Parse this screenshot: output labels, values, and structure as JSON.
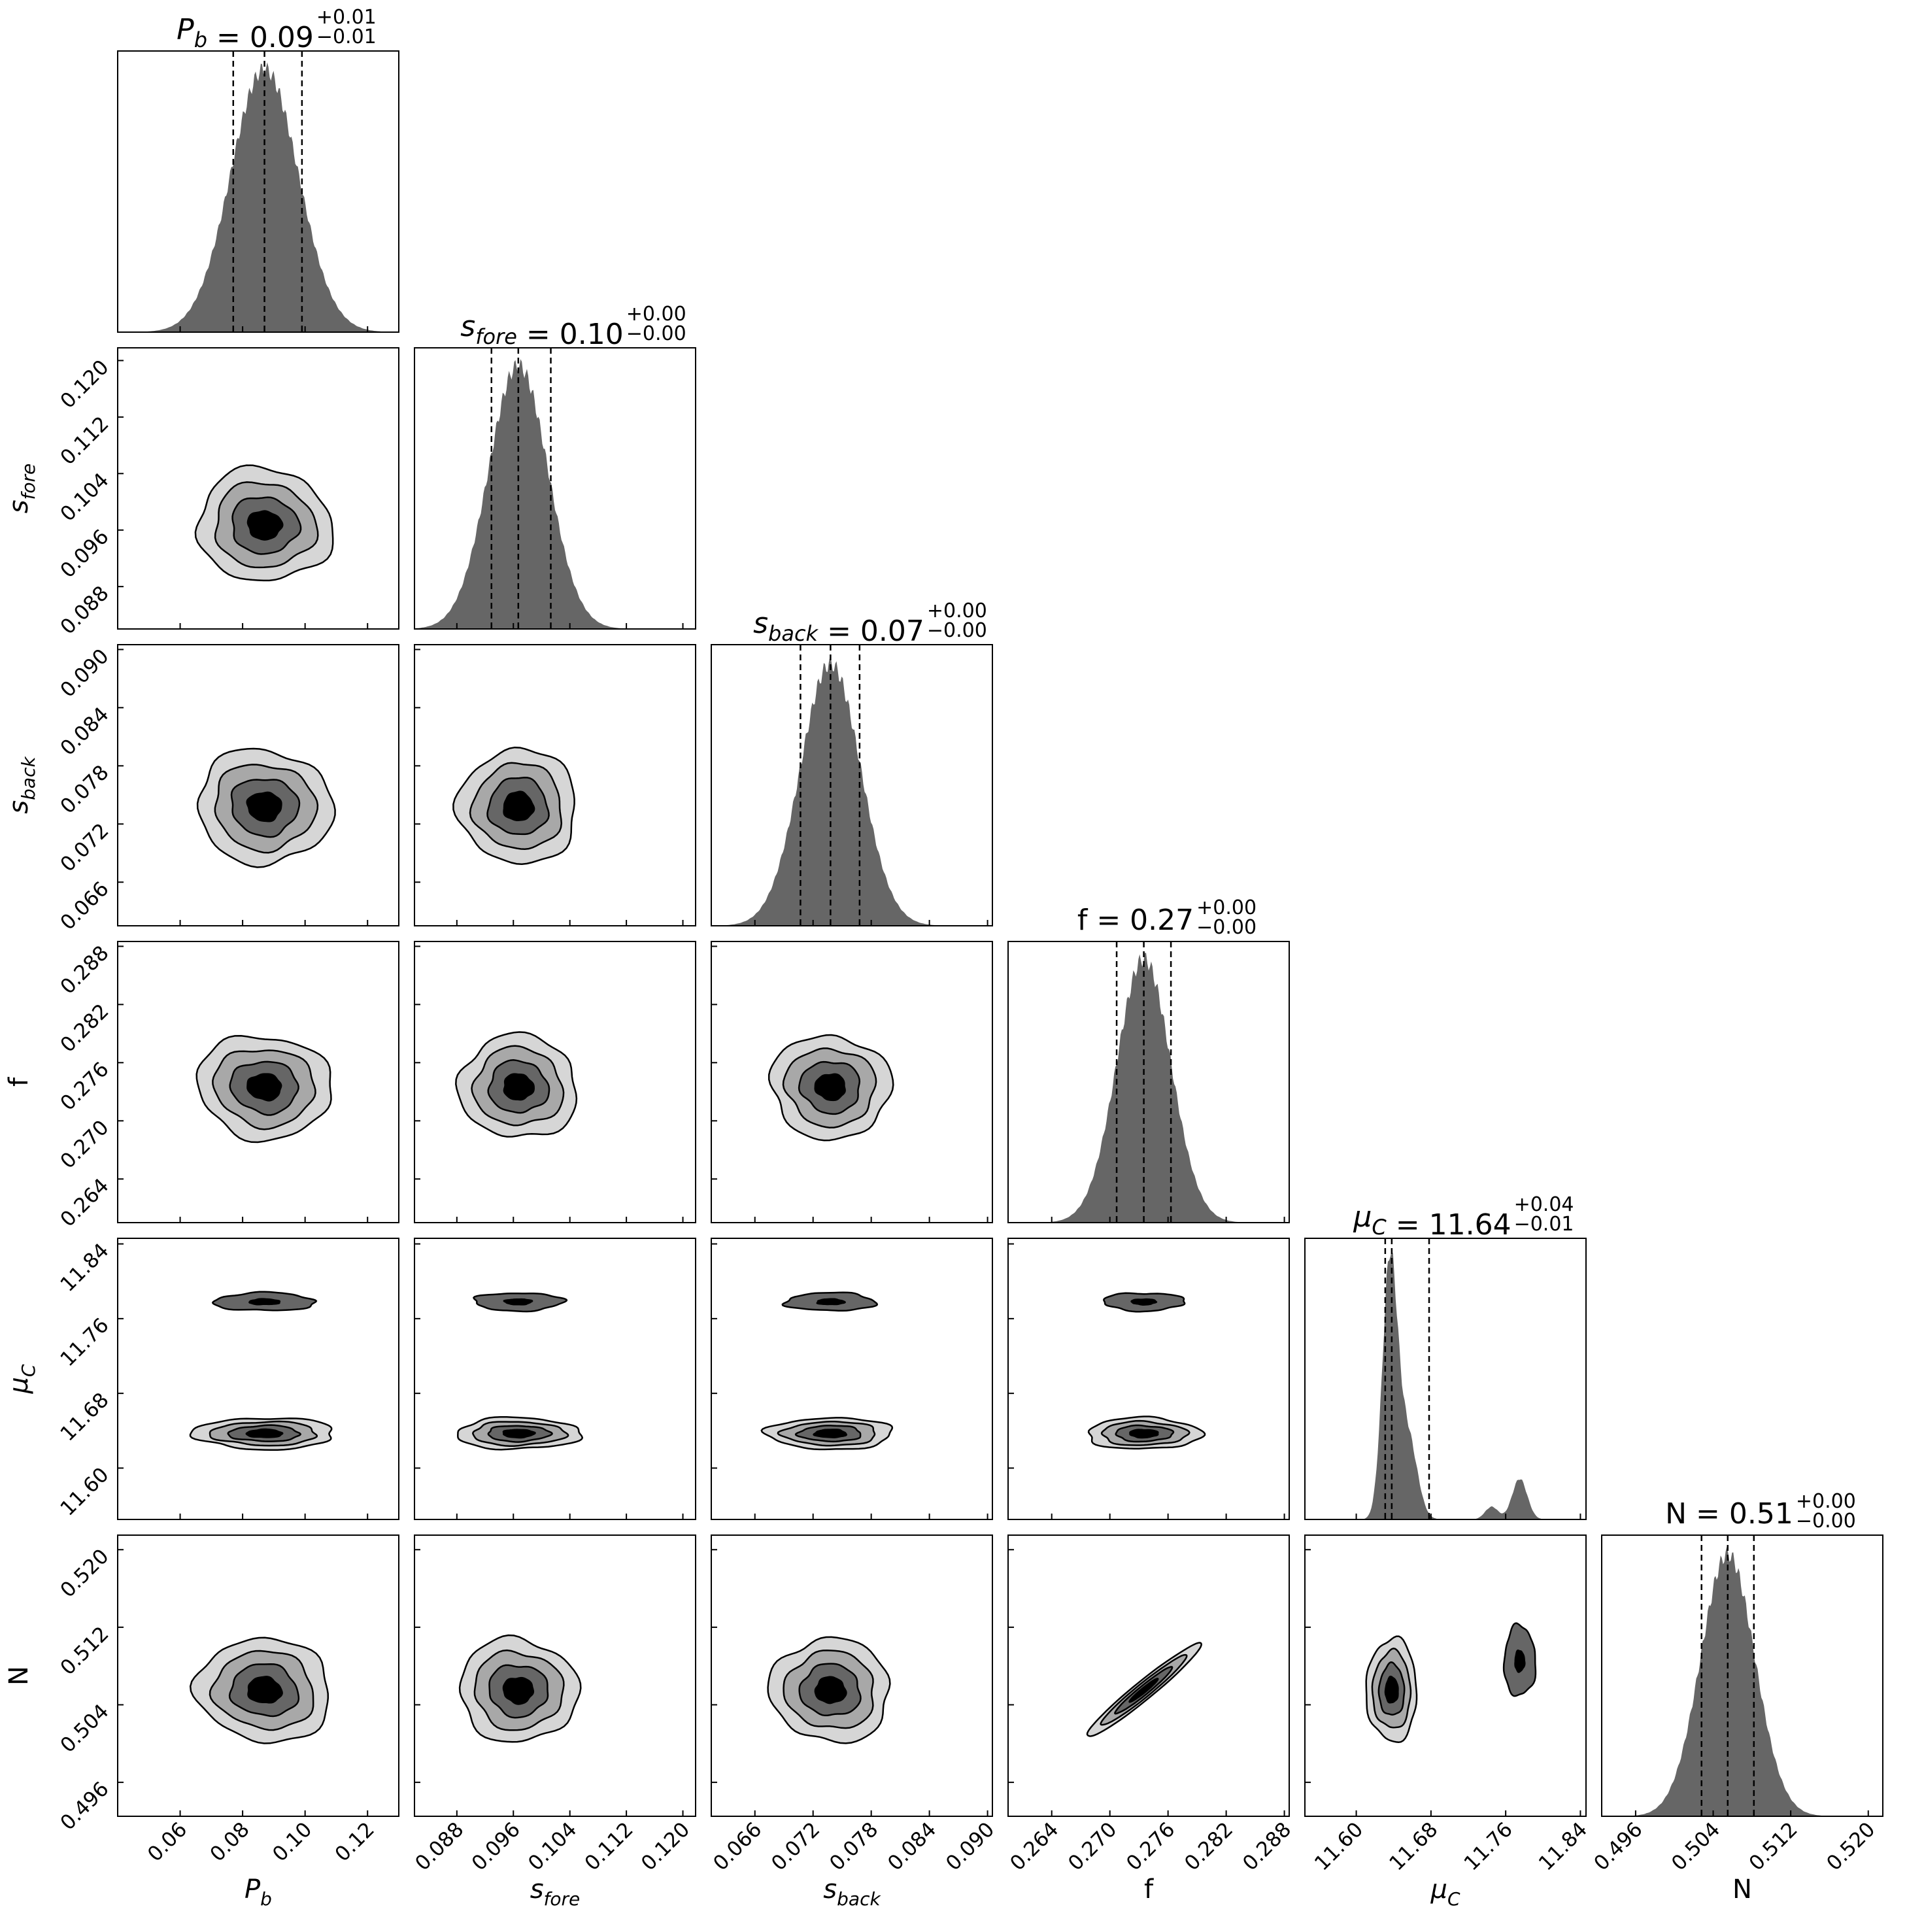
{
  "chart_data": {
    "type": "corner",
    "parameters": [
      {
        "key": "Pb",
        "label": "P_b",
        "tex_base": "P",
        "tex_sub": "b",
        "italic": true,
        "title_value": "0.09",
        "title_plus": "+0.01",
        "title_minus": "−0.01",
        "range": [
          0.04,
          0.13
        ],
        "ticks": [
          "0.06",
          "0.08",
          "0.10",
          "0.12"
        ],
        "q16": 0.077,
        "median": 0.087,
        "q84": 0.099,
        "sigma": 0.0108,
        "mode_only": false
      },
      {
        "key": "sfore",
        "label": "s_fore",
        "tex_base": "s",
        "tex_sub": "fore",
        "italic": true,
        "title_value": "0.10",
        "title_plus": "+0.00",
        "title_minus": "−0.00",
        "range": [
          0.082,
          0.1218
        ],
        "ticks": [
          "0.088",
          "0.096",
          "0.104",
          "0.112",
          "0.120"
        ],
        "q16": 0.0929,
        "median": 0.0967,
        "q84": 0.1013,
        "sigma": 0.0042,
        "mode_only": false
      },
      {
        "key": "sback",
        "label": "s_back",
        "tex_base": "s",
        "tex_sub": "back",
        "italic": true,
        "title_value": "0.07",
        "title_plus": "+0.00",
        "title_minus": "−0.00",
        "range": [
          0.0615,
          0.0905
        ],
        "ticks": [
          "0.066",
          "0.072",
          "0.078",
          "0.084",
          "0.090"
        ],
        "q16": 0.0707,
        "median": 0.0738,
        "q84": 0.0768,
        "sigma": 0.0031,
        "mode_only": false
      },
      {
        "key": "f",
        "label": "f",
        "tex_base": "f",
        "tex_sub": "",
        "italic": false,
        "title_value": "0.27",
        "title_plus": "+0.00",
        "title_minus": "−0.00",
        "range": [
          0.2595,
          0.2885
        ],
        "ticks": [
          "0.264",
          "0.270",
          "0.276",
          "0.282",
          "0.288"
        ],
        "q16": 0.2707,
        "median": 0.2735,
        "q84": 0.2763,
        "sigma": 0.0028,
        "mode_only": false
      },
      {
        "key": "muC",
        "label": "μ_C",
        "tex_base": "μ",
        "tex_sub": "C",
        "italic": true,
        "title_value": "11.64",
        "title_plus": "+0.04",
        "title_minus": "−0.01",
        "range": [
          11.545,
          11.846
        ],
        "ticks": [
          "11.60",
          "11.68",
          "11.76",
          "11.84"
        ],
        "q16": 11.631,
        "median": 11.638,
        "q84": 11.678,
        "sigma": 0.012,
        "mode_only": true
      },
      {
        "key": "N",
        "label": "N",
        "tex_base": "N",
        "tex_sub": "",
        "italic": false,
        "title_value": "0.51",
        "title_plus": "+0.00",
        "title_minus": "−0.00",
        "range": [
          0.4925,
          0.5215
        ],
        "ticks": [
          "0.496",
          "0.504",
          "0.512",
          "0.520"
        ],
        "q16": 0.5028,
        "median": 0.5055,
        "q84": 0.5082,
        "sigma": 0.0028,
        "mode_only": false
      }
    ],
    "muC_modes": [
      {
        "center": 11.636,
        "sigma": 0.008,
        "weight": 1.0
      },
      {
        "center": 11.655,
        "sigma": 0.01,
        "weight": 0.33
      },
      {
        "center": 11.745,
        "sigma": 0.007,
        "weight": 0.05
      },
      {
        "center": 11.775,
        "sigma": 0.008,
        "weight": 0.16
      }
    ],
    "f_N_correlation": 0.97,
    "contour_fills": [
      "#000000",
      "#666666",
      "#a8a8a8",
      "#d6d6d6"
    ],
    "hist_fill": "#666666",
    "grid": false
  }
}
